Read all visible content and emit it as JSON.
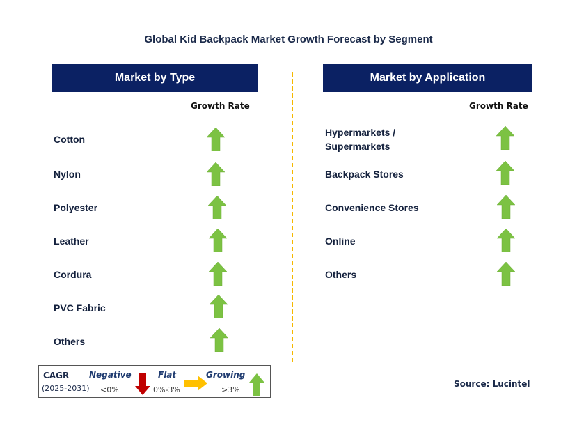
{
  "title": "Global Kid Backpack Market Growth Forecast by Segment",
  "colors": {
    "header_bg": "#0b2163",
    "growing": "#7cc243",
    "negative": "#c00000",
    "flat": "#ffc000",
    "divider": "#f5b800"
  },
  "left": {
    "header": "Market by Type",
    "growth_label": "Growth Rate",
    "items": [
      {
        "label": "Cotton",
        "trend": "growing"
      },
      {
        "label": "Nylon",
        "trend": "growing"
      },
      {
        "label": "Polyester",
        "trend": "growing"
      },
      {
        "label": "Leather",
        "trend": "growing"
      },
      {
        "label": "Cordura",
        "trend": "growing"
      },
      {
        "label": "PVC Fabric",
        "trend": "growing"
      },
      {
        "label": "Others",
        "trend": "growing"
      }
    ]
  },
  "right": {
    "header": "Market by Application",
    "growth_label": "Growth Rate",
    "items": [
      {
        "label_line1": "Hypermarkets /",
        "label_line2": "Supermarkets",
        "trend": "growing"
      },
      {
        "label": "Backpack Stores",
        "trend": "growing"
      },
      {
        "label": "Convenience Stores",
        "trend": "growing"
      },
      {
        "label": "Online",
        "trend": "growing"
      },
      {
        "label": "Others",
        "trend": "growing"
      }
    ]
  },
  "legend": {
    "cagr": "CAGR",
    "period": "(2025-2031)",
    "negative_label": "Negative",
    "negative_range": "<0%",
    "flat_label": "Flat",
    "flat_range": "0%-3%",
    "growing_label": "Growing",
    "growing_range": ">3%"
  },
  "source": "Source: Lucintel"
}
